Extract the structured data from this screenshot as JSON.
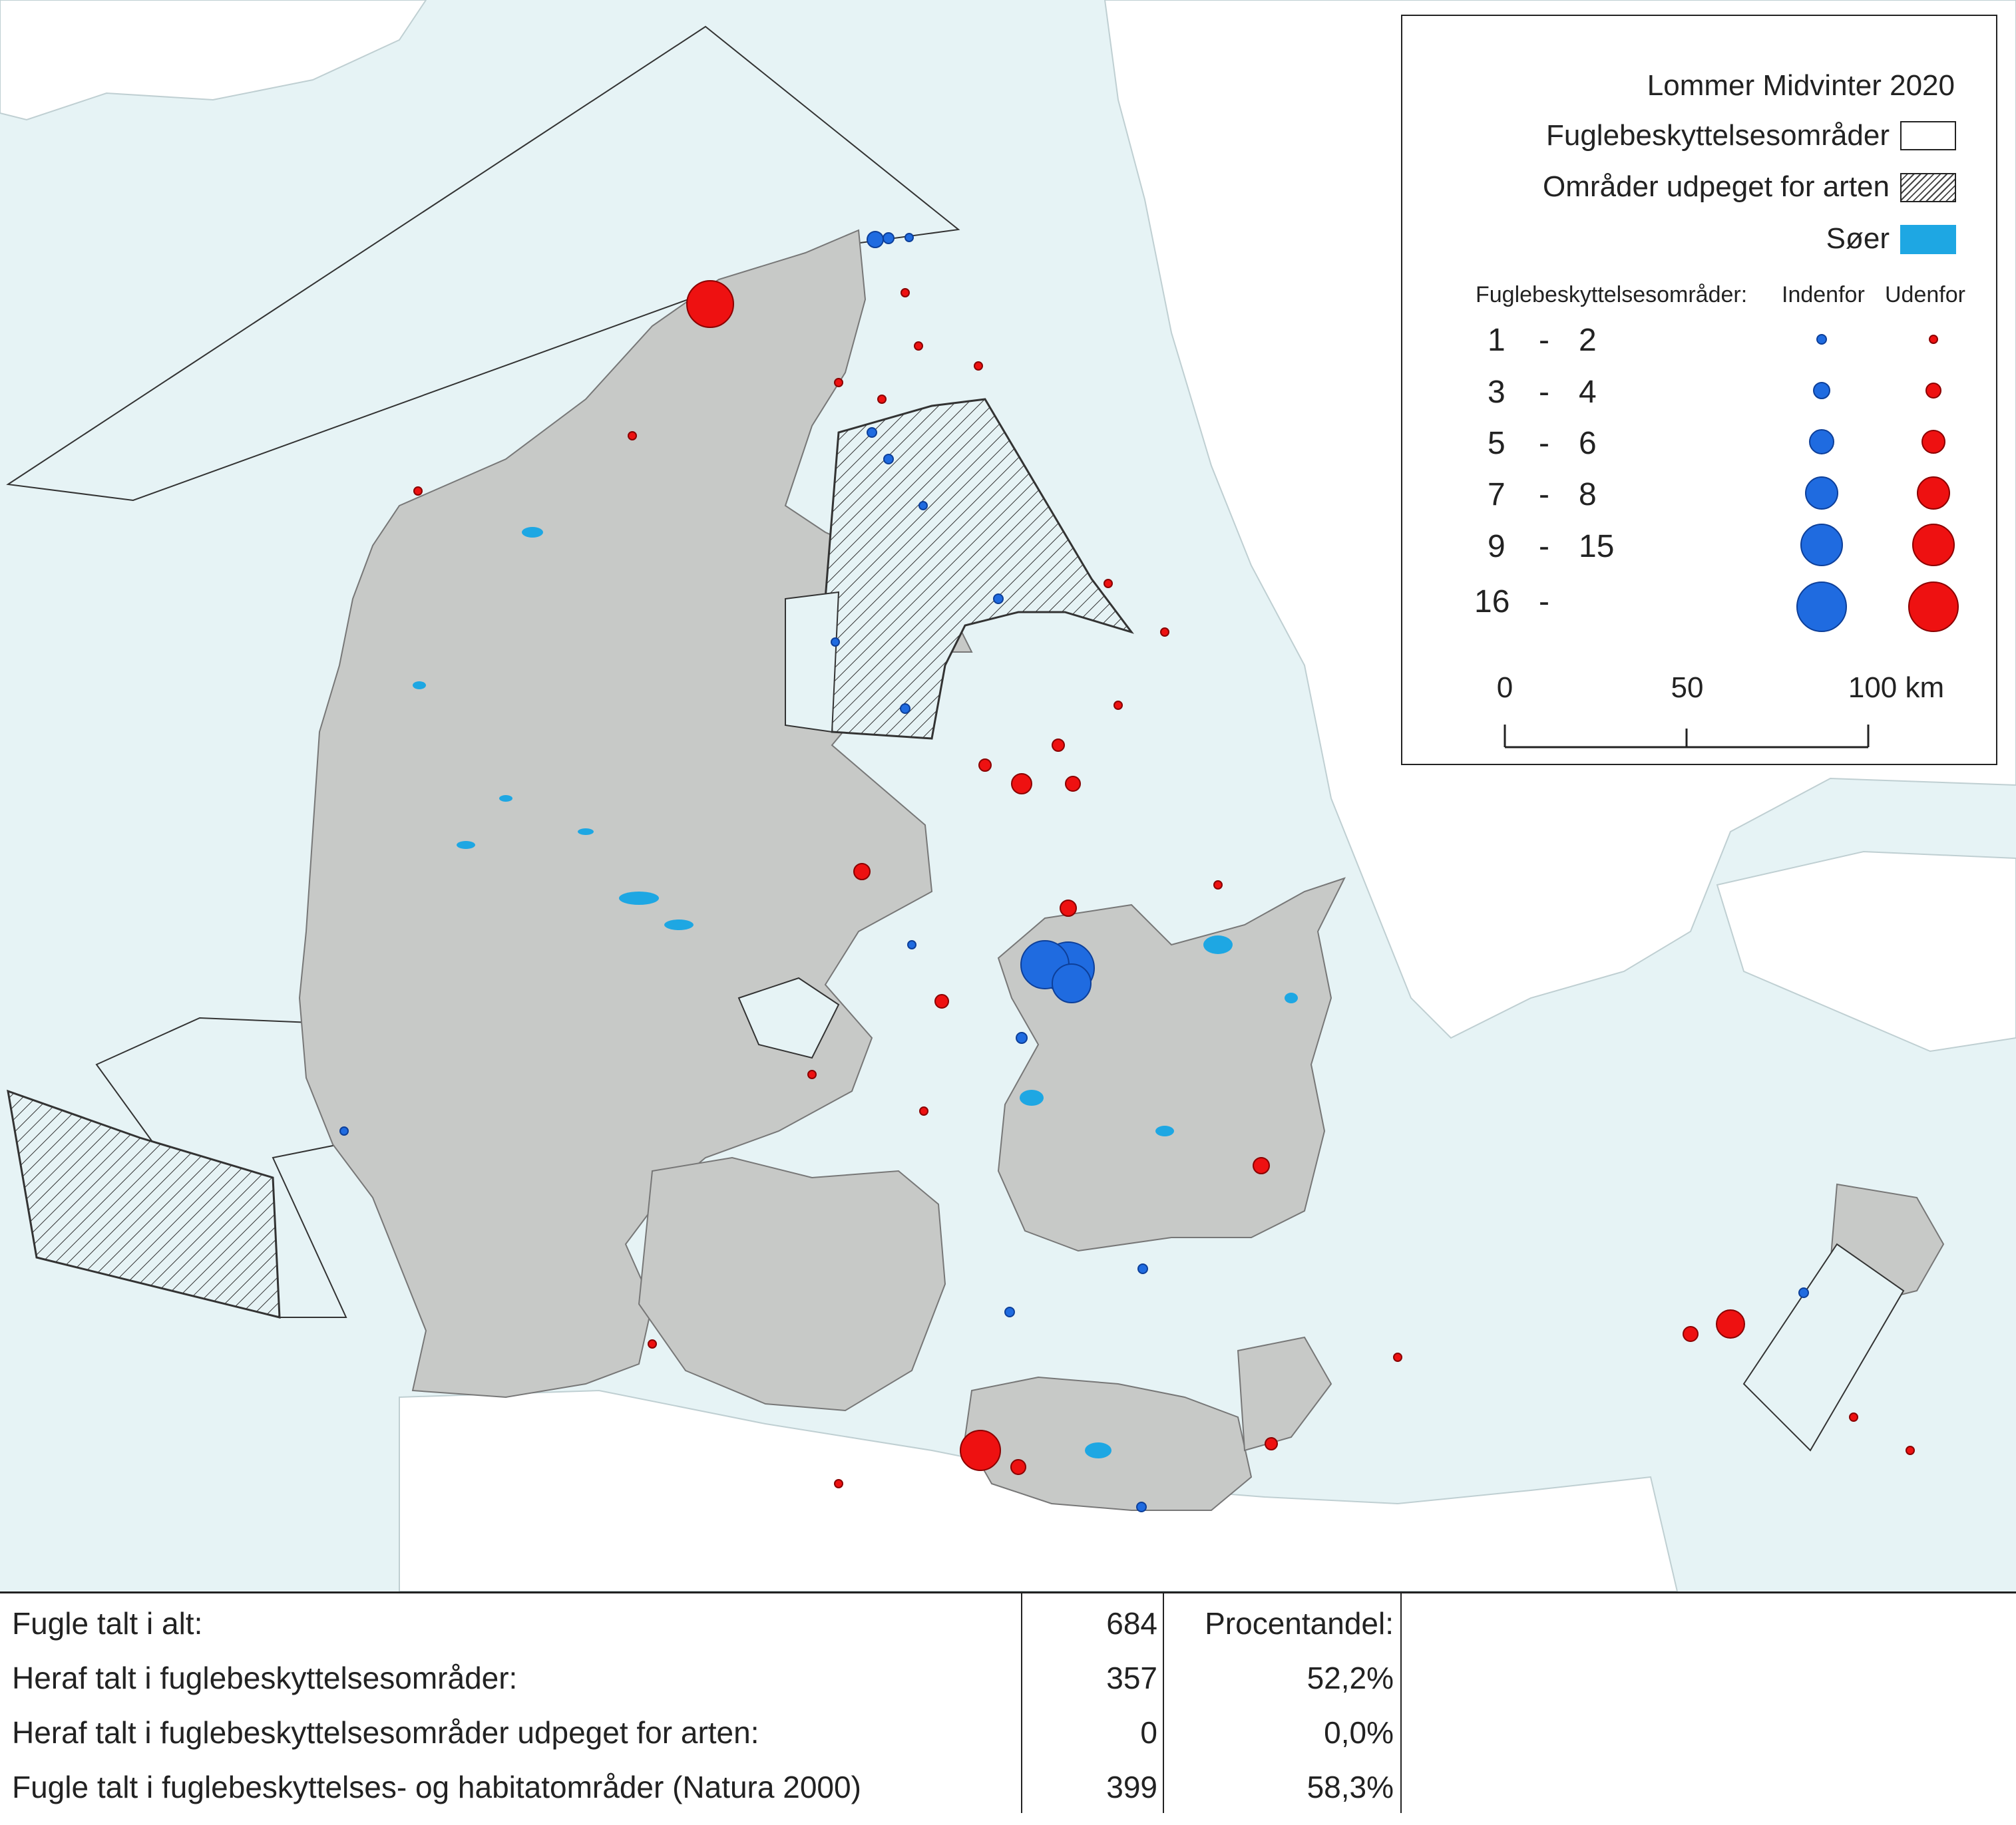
{
  "legend": {
    "title": "Lommer Midvinter 2020",
    "items": [
      {
        "label": "Fuglebeskyttelsesområder",
        "swatch": "white"
      },
      {
        "label": "Områder udpeget for arten",
        "swatch": "hatched"
      },
      {
        "label": "Søer",
        "swatch": "lake",
        "color": "#1ea7e3"
      }
    ],
    "size_header": "Fuglebeskyttelsesområder:",
    "col_inside": "Indenfor",
    "col_outside": "Udenfor",
    "classes": [
      {
        "from": "1",
        "dash": "-",
        "to": "2"
      },
      {
        "from": "3",
        "dash": "-",
        "to": "4"
      },
      {
        "from": "5",
        "dash": "-",
        "to": "6"
      },
      {
        "from": "7",
        "dash": "-",
        "to": "8"
      },
      {
        "from": "9",
        "dash": "-",
        "to": "15"
      },
      {
        "from": "16",
        "dash": "-",
        "to": ""
      }
    ],
    "scale": {
      "ticks": [
        "0",
        "50",
        "100 km"
      ]
    },
    "colors": {
      "inside": "#1f6be0",
      "outside": "#ee1111",
      "land": "#c7c9c7",
      "sea": "#e6f3f5",
      "foreign": "#ffffff"
    }
  },
  "stats": {
    "rows": [
      {
        "label": "Fugle talt i alt:",
        "count": "684",
        "pct": "Procentandel:"
      },
      {
        "label": "Heraf talt i fuglebeskyttelsesområder:",
        "count": "357",
        "pct": "52,2%"
      },
      {
        "label": "Heraf talt i fuglebeskyttelsesområder udpeget for arten:",
        "count": "0",
        "pct": "0,0%"
      },
      {
        "label": "Fugle talt i fuglebeskyttelses- og habitatområder (Natura 2000)",
        "count": "399",
        "pct": "58,3%"
      }
    ]
  }
}
